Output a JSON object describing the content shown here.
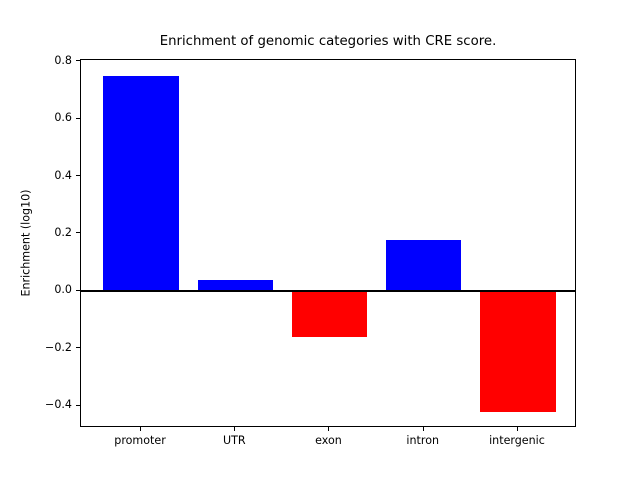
{
  "figure": {
    "background_color": "#ffffff",
    "text_color": "#000000"
  },
  "chart_data": {
    "type": "bar",
    "title": "Enrichment of genomic categories with CRE score.",
    "xlabel": "",
    "ylabel": "Enrichment (log10)",
    "categories": [
      "promoter",
      "UTR",
      "exon",
      "intron",
      "intergenic"
    ],
    "values": [
      0.75,
      0.04,
      -0.16,
      0.18,
      -0.42
    ],
    "bar_colors": [
      "#0000ff",
      "#0000ff",
      "#ff0000",
      "#0000ff",
      "#ff0000"
    ],
    "positive_color": "#0000ff",
    "negative_color": "#ff0000",
    "yticks": [
      0.8,
      0.6,
      0.4,
      0.2,
      0.0,
      -0.2,
      -0.4
    ],
    "ytick_labels": [
      "0.8",
      "0.6",
      "0.4",
      "0.2",
      "0.0",
      "−0.2",
      "−0.4"
    ],
    "ylim": [
      -0.4756,
      0.8056
    ],
    "zero_line": true,
    "grid": false,
    "legend": null
  }
}
